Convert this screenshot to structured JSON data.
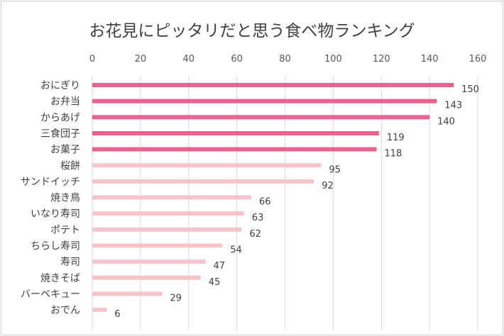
{
  "chart_data": {
    "type": "bar",
    "orientation": "horizontal",
    "title": "お花見にピッタリだと思う食べ物ランキング",
    "xlabel": "",
    "ylabel": "",
    "xlim": [
      0,
      160
    ],
    "xticks": [
      0,
      20,
      40,
      60,
      80,
      100,
      120,
      140,
      160
    ],
    "grid": true,
    "axis_position": "top",
    "categories": [
      "おにぎり",
      "お弁当",
      "からあげ",
      "三食団子",
      "お菓子",
      "桜餅",
      "サンドイッチ",
      "焼き鳥",
      "いなり寿司",
      "ポテト",
      "ちらし寿司",
      "寿司",
      "焼きそば",
      "バーベキュー",
      "おでん"
    ],
    "values": [
      150,
      143,
      140,
      119,
      118,
      95,
      92,
      66,
      63,
      62,
      54,
      47,
      45,
      29,
      6
    ],
    "highlight_count": 5,
    "colors": {
      "highlight": "#e8648f",
      "normal": "#f6c5cc",
      "grid": "#d9d9d9"
    }
  }
}
